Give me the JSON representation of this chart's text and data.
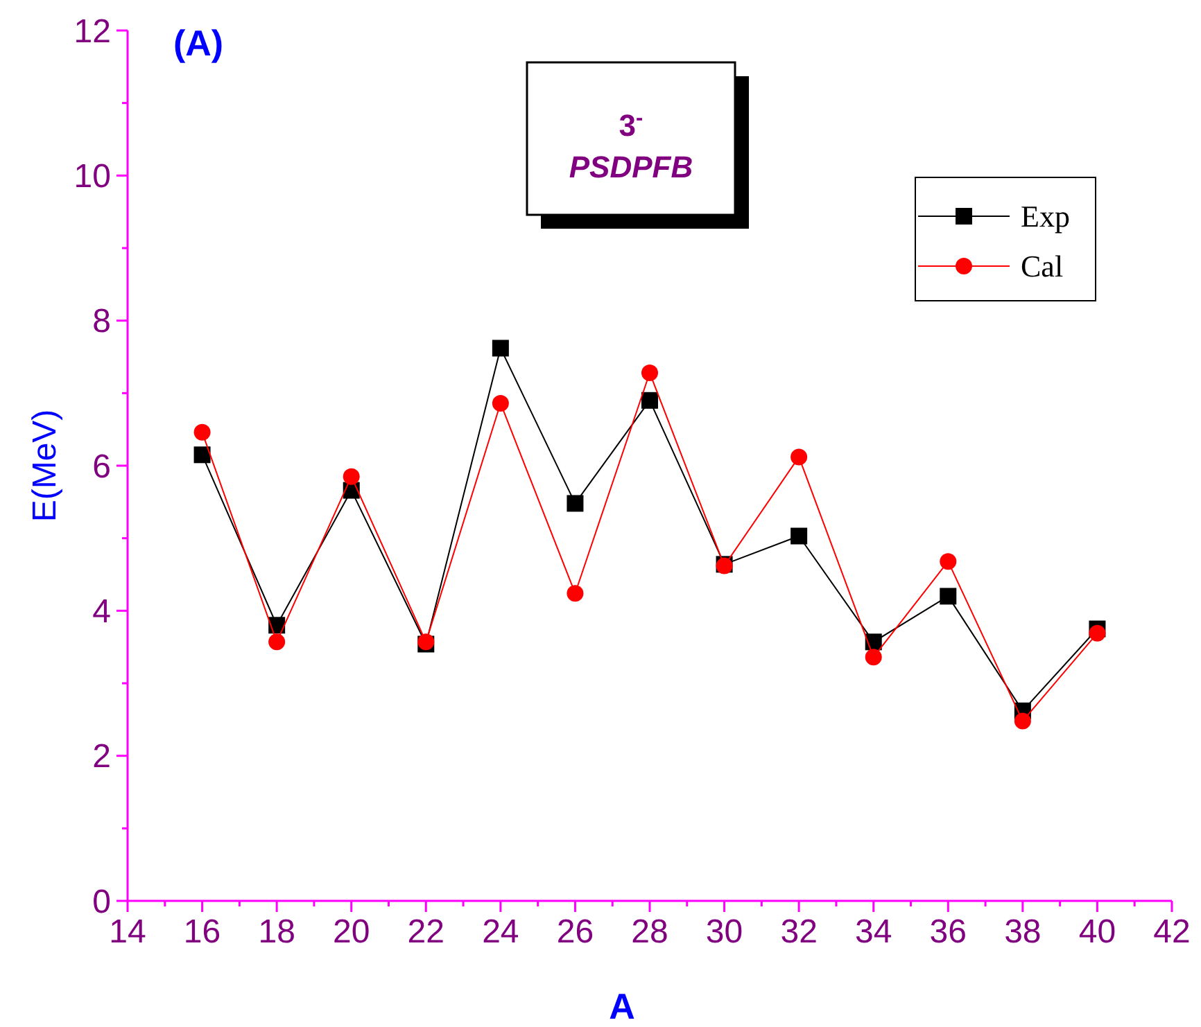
{
  "chart_data": {
    "type": "line",
    "title": "(A)",
    "xlabel": "A",
    "ylabel": "E(MeV)",
    "annotations": [
      "3$^{-}$",
      "PSDPFB"
    ],
    "x": [
      16,
      18,
      20,
      22,
      24,
      26,
      28,
      30,
      32,
      34,
      36,
      38,
      40
    ],
    "series": [
      {
        "name": "Exp",
        "color": "#000000",
        "marker": "square",
        "values": [
          6.15,
          3.8,
          5.66,
          3.54,
          7.62,
          5.48,
          6.9,
          4.64,
          5.03,
          3.57,
          4.2,
          2.62,
          3.75
        ]
      },
      {
        "name": "Cal",
        "color": "#ff0000",
        "marker": "circle",
        "values": [
          6.46,
          3.57,
          5.85,
          3.57,
          6.86,
          4.24,
          7.28,
          4.62,
          6.12,
          3.36,
          4.68,
          2.48,
          3.69
        ]
      }
    ],
    "xlim": [
      14,
      42
    ],
    "xticks": [
      14,
      {
        "value": 15,
        "label": null
      },
      16,
      {
        "value": 17,
        "label": null
      },
      18,
      {
        "value": 19,
        "label": null
      },
      20,
      {
        "value": 21,
        "label": null
      },
      22,
      {
        "value": 23,
        "label": null
      },
      24,
      {
        "value": 25,
        "label": null
      },
      26,
      {
        "value": 27,
        "label": null
      },
      28,
      {
        "value": 29,
        "label": null
      },
      30,
      {
        "value": 31,
        "label": null
      },
      32,
      {
        "value": 33,
        "label": null
      },
      34,
      {
        "value": 35,
        "label": null
      },
      36,
      {
        "value": 37,
        "label": null
      },
      38,
      {
        "value": 39,
        "label": null
      },
      40,
      {
        "value": 41,
        "label": null
      },
      42
    ],
    "ylim": [
      0,
      12
    ],
    "yticks": [
      0,
      {
        "value": 1,
        "label": null
      },
      2,
      {
        "value": 3,
        "label": null
      },
      4,
      {
        "value": 5,
        "label": null
      },
      6,
      {
        "value": 7,
        "label": null
      },
      8,
      {
        "value": 9,
        "label": null
      },
      10,
      {
        "value": 11,
        "label": null
      },
      12
    ],
    "grid": false,
    "legend": "top right",
    "line_style": "solid"
  }
}
